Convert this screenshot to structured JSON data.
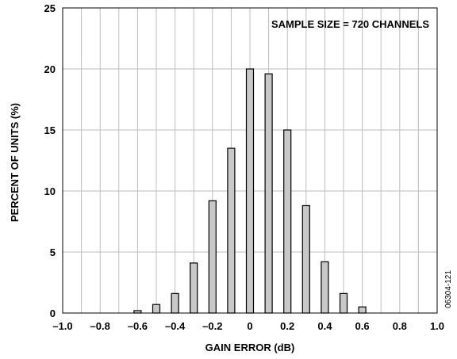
{
  "chart_data": {
    "type": "bar",
    "x": [
      -0.6,
      -0.5,
      -0.4,
      -0.3,
      -0.2,
      -0.1,
      0.0,
      0.1,
      0.2,
      0.3,
      0.4,
      0.5,
      0.6
    ],
    "values": [
      0.2,
      0.7,
      1.6,
      4.1,
      9.2,
      13.5,
      20.0,
      19.6,
      15.0,
      8.8,
      4.2,
      1.6,
      0.5
    ],
    "xlabel": "GAIN ERROR (dB)",
    "ylabel": "PERCENT OF UNITS (%)",
    "xlim": [
      -1.0,
      1.0
    ],
    "ylim": [
      0,
      25
    ],
    "xticks": [
      -1.0,
      -0.8,
      -0.6,
      -0.4,
      -0.2,
      0,
      0.2,
      0.4,
      0.6,
      0.8,
      1.0
    ],
    "xtick_labels": [
      "–1.0",
      "–0.8",
      "–0.6",
      "–0.4",
      "–0.2",
      "0",
      "0.2",
      "0.4",
      "0.6",
      "0.8",
      "1.0"
    ],
    "yticks": [
      0,
      5,
      10,
      15,
      20,
      25
    ],
    "ytick_labels": [
      "0",
      "5",
      "10",
      "15",
      "20",
      "25"
    ],
    "grid": true,
    "annotation": "SAMPLE SIZE = 720 CHANNELS",
    "bar_color": "#c8c8c8",
    "figure_id": "06304-121"
  }
}
